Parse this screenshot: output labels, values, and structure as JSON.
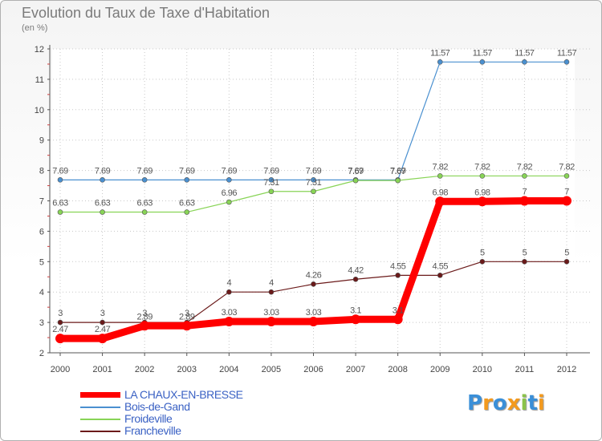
{
  "title": "Evolution du Taux de Taxe d'Habitation",
  "unit_label": "(en %)",
  "chart_data": {
    "type": "line",
    "x": [
      "2000",
      "2001",
      "2002",
      "2003",
      "2004",
      "2005",
      "2006",
      "2007",
      "2008",
      "2009",
      "2010",
      "2011",
      "2012"
    ],
    "ylim": [
      2,
      12
    ],
    "yticks": [
      "2",
      "3",
      "4",
      "5",
      "6",
      "7",
      "8",
      "9",
      "10",
      "11",
      "12"
    ],
    "grid": true,
    "legend_position": "bottom-left",
    "series": [
      {
        "name": "LA CHAUX-EN-BRESSE",
        "color": "#ff0000",
        "values": [
          2.47,
          2.47,
          2.89,
          2.89,
          3.03,
          3.03,
          3.03,
          3.1,
          3.1,
          6.98,
          6.98,
          7,
          7
        ],
        "labels": [
          "2.47",
          "2.47",
          "2.89",
          "2.89",
          "3.03",
          "3.03",
          "3.03",
          "3.1",
          "3.1",
          "6.98",
          "6.98",
          "7",
          "7"
        ]
      },
      {
        "name": "Bois-de-Gand",
        "color": "#4a90d0",
        "values": [
          7.69,
          7.69,
          7.69,
          7.69,
          7.69,
          7.69,
          7.69,
          7.69,
          7.69,
          11.57,
          11.57,
          11.57,
          11.57
        ],
        "labels": [
          "7.69",
          "7.69",
          "7.69",
          "7.69",
          "7.69",
          "7.69",
          "7.69",
          "7.69",
          "7.69",
          "11.57",
          "11.57",
          "11.57",
          "11.57"
        ]
      },
      {
        "name": "Froideville",
        "color": "#88d456",
        "values": [
          6.63,
          6.63,
          6.63,
          6.63,
          6.96,
          7.31,
          7.31,
          7.67,
          7.67,
          7.82,
          7.82,
          7.82,
          7.82
        ],
        "labels": [
          "6.63",
          "6.63",
          "6.63",
          "6.63",
          "6.96",
          "7.31",
          "7.31",
          "7.67",
          "7.67",
          "7.82",
          "7.82",
          "7.82",
          "7.82"
        ]
      },
      {
        "name": "Francheville",
        "color": "#6b1a1a",
        "values": [
          3,
          3,
          3,
          3,
          4,
          4,
          4.26,
          4.42,
          4.55,
          4.55,
          5,
          5,
          5
        ],
        "labels": [
          "3",
          "3",
          "3",
          "3",
          "4",
          "4",
          "4.26",
          "4.42",
          "4.55",
          "4.55",
          "5",
          "5",
          "5"
        ]
      }
    ]
  },
  "logo": {
    "letters": [
      "P",
      "r",
      "o",
      "x",
      "i",
      "t",
      "i"
    ],
    "colors": [
      "#3a8fd8",
      "#f39a1e",
      "#3a8fd8",
      "#f39a1e",
      "#8bc34a",
      "#3a8fd8",
      "#f39a1e"
    ]
  }
}
